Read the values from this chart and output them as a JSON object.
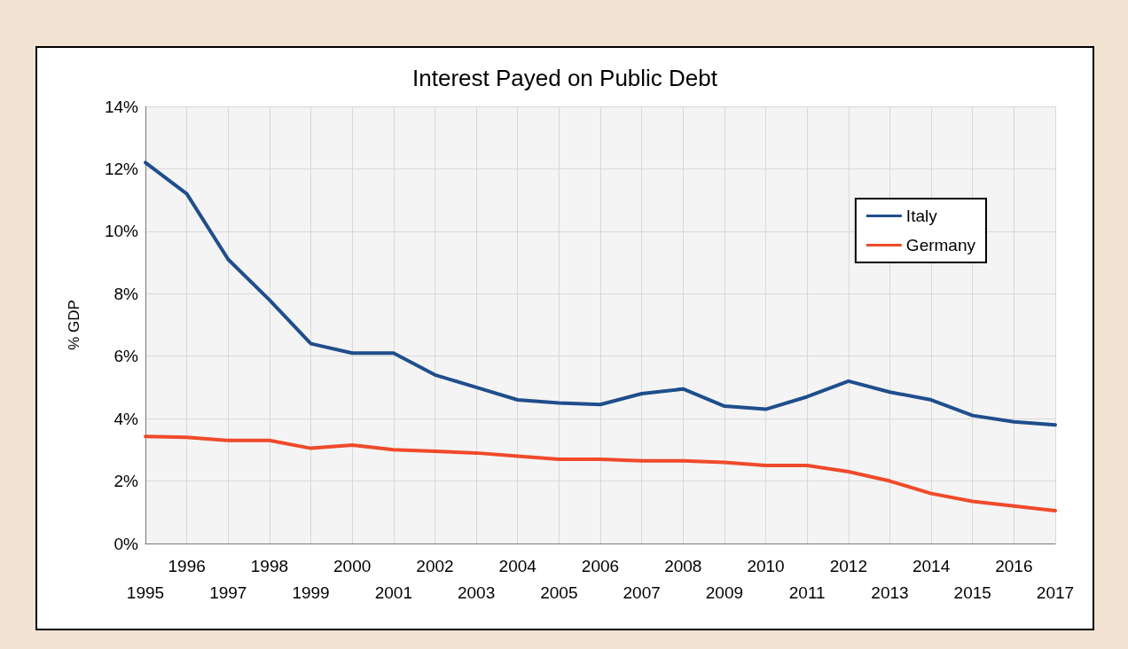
{
  "chart_data": {
    "type": "line",
    "title": "Interest Payed on Public Debt",
    "ylabel": "% GDP",
    "categories": [
      "1995",
      "1996",
      "1997",
      "1998",
      "1999",
      "2000",
      "2001",
      "2002",
      "2003",
      "2004",
      "2005",
      "2006",
      "2007",
      "2008",
      "2009",
      "2010",
      "2011",
      "2012",
      "2013",
      "2014",
      "2015",
      "2016",
      "2017"
    ],
    "series": [
      {
        "name": "Italy",
        "color": "#1f4e8c",
        "values": [
          12.2,
          11.2,
          9.1,
          7.8,
          6.4,
          6.1,
          6.1,
          5.4,
          5.0,
          4.6,
          4.5,
          4.45,
          4.8,
          4.95,
          4.4,
          4.3,
          4.7,
          5.2,
          4.85,
          4.6,
          4.1,
          3.9,
          3.8
        ]
      },
      {
        "name": "Germany",
        "color": "#f04a2a",
        "values": [
          3.43,
          3.4,
          3.3,
          3.3,
          3.05,
          3.15,
          3.0,
          2.95,
          2.9,
          2.8,
          2.7,
          2.7,
          2.65,
          2.65,
          2.6,
          2.5,
          2.5,
          2.3,
          2.0,
          1.6,
          1.35,
          1.2,
          1.05
        ]
      }
    ],
    "ylim": [
      0,
      14
    ],
    "yticks": [
      {
        "value": 0,
        "label": "0%"
      },
      {
        "value": 2,
        "label": "2%"
      },
      {
        "value": 4,
        "label": "4%"
      },
      {
        "value": 6,
        "label": "6%"
      },
      {
        "value": 8,
        "label": "8%"
      },
      {
        "value": 10,
        "label": "10%"
      },
      {
        "value": 12,
        "label": "12%"
      },
      {
        "value": 14,
        "label": "14%"
      }
    ],
    "grid": true,
    "legend": "top right",
    "marker": "none",
    "line_style": "solid"
  }
}
